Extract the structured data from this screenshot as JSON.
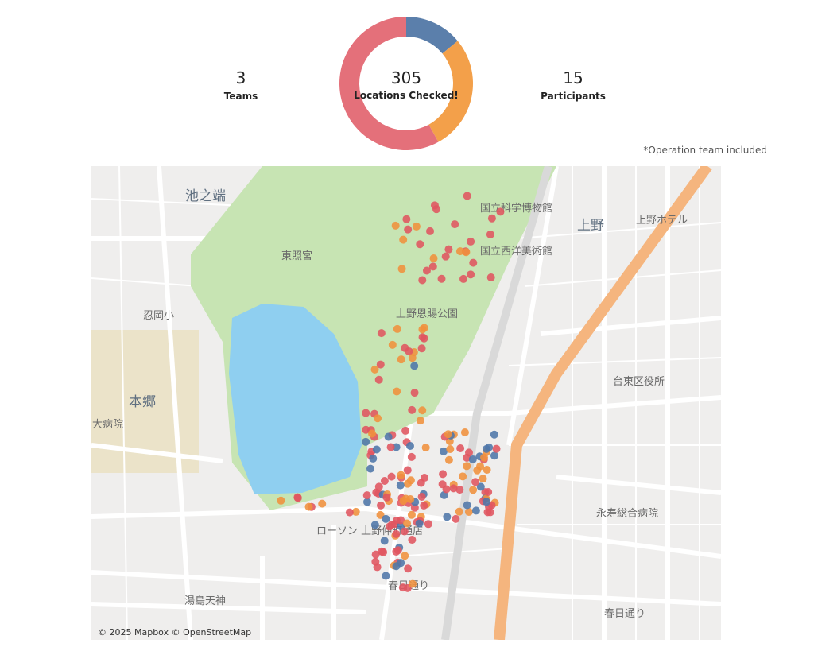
{
  "chart_data": {
    "type": "pie",
    "values": [
      14,
      28,
      58
    ],
    "colors": [
      "#5b7fab",
      "#f3a04a",
      "#e4707a"
    ]
  },
  "kpis": [
    {
      "value": 3,
      "label": "Teams"
    },
    {
      "value": 305,
      "label": "Locations Checked!"
    },
    {
      "value": 15,
      "label": "Participants"
    }
  ],
  "note": "*Operation team included",
  "map": {
    "labels": [
      "池之端",
      "上野",
      "本郷",
      "東照宮",
      "国立科学博物館",
      "国立西洋美術館",
      "上野恩賜公園",
      "台東区役所",
      "永寿総合病院",
      "春日通り",
      "春日通り",
      "大病院",
      "忍岡小",
      "上野ホテル",
      "湯島天神",
      "ローソン 上野仲町通店"
    ],
    "attribution": "© 2025 Mapbox © OpenStreetMap"
  }
}
